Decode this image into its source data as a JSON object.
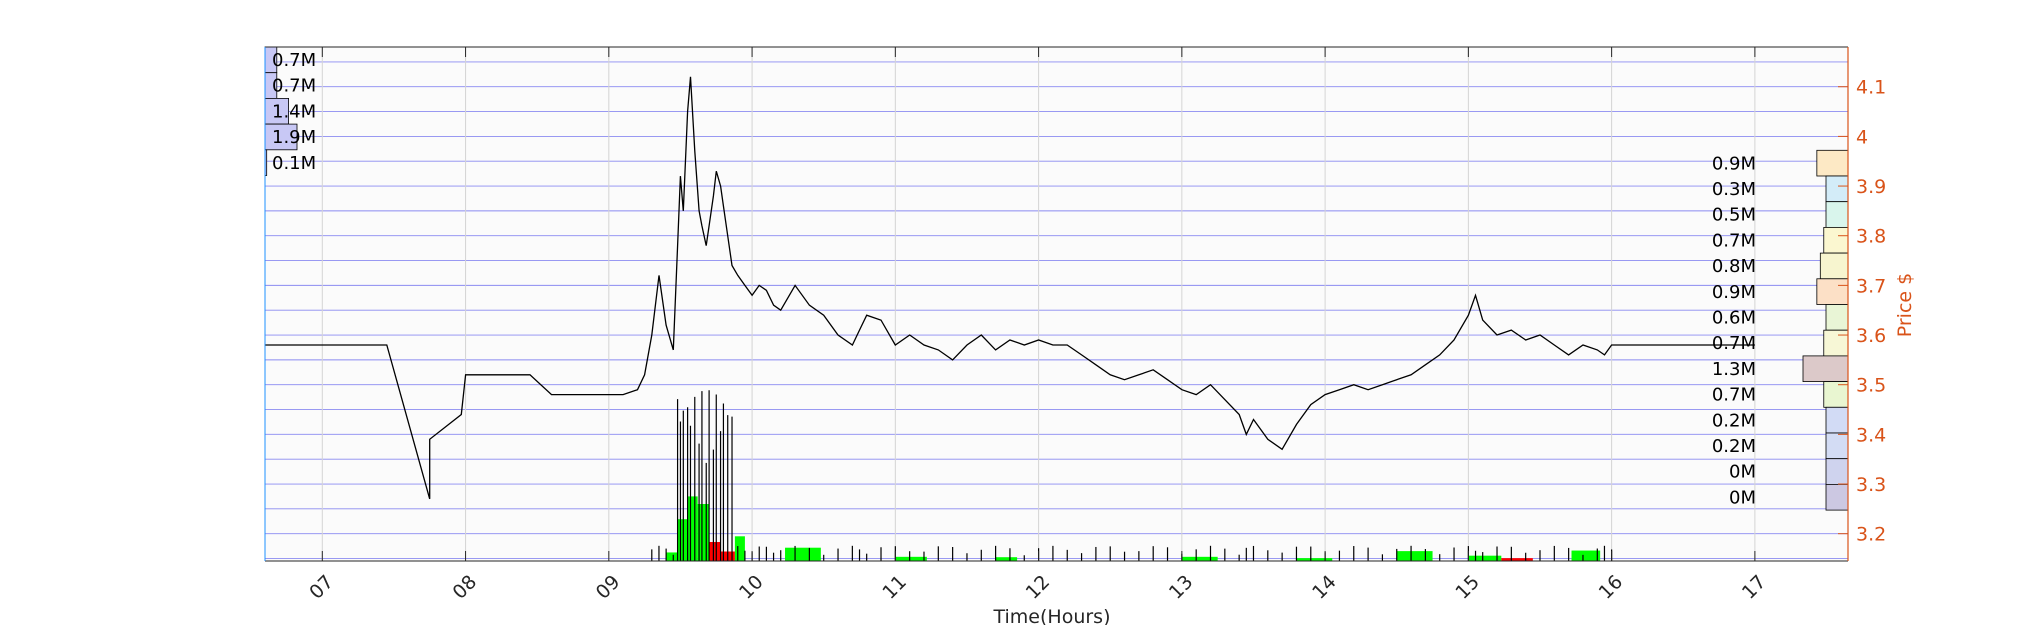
{
  "chart_data": {
    "type": "line",
    "xlabel": "Time(Hours)",
    "ylabel": "Price $",
    "x_ticks": [
      "07",
      "08",
      "09",
      "10",
      "11",
      "12",
      "13",
      "14",
      "15",
      "16",
      "17"
    ],
    "xlim": [
      6.6,
      17.65
    ],
    "y_ticks": [
      3.2,
      3.3,
      3.4,
      3.5,
      3.6,
      3.7,
      3.8,
      3.9,
      4,
      4.1
    ],
    "ylim": [
      3.145,
      4.18
    ],
    "grid": true,
    "price_series": {
      "name": "",
      "x": [
        6.6,
        7.45,
        7.75,
        7.75,
        7.97,
        8.0,
        8.45,
        8.6,
        8.95,
        9.1,
        9.2,
        9.25,
        9.3,
        9.35,
        9.4,
        9.45,
        9.48,
        9.5,
        9.52,
        9.55,
        9.57,
        9.6,
        9.63,
        9.65,
        9.68,
        9.7,
        9.73,
        9.75,
        9.78,
        9.8,
        9.83,
        9.86,
        9.9,
        9.95,
        10.0,
        10.05,
        10.1,
        10.15,
        10.2,
        10.3,
        10.4,
        10.5,
        10.6,
        10.7,
        10.75,
        10.8,
        10.9,
        11.0,
        11.1,
        11.2,
        11.3,
        11.4,
        11.5,
        11.6,
        11.7,
        11.8,
        11.9,
        12.0,
        12.1,
        12.2,
        12.3,
        12.4,
        12.5,
        12.6,
        12.7,
        12.8,
        12.9,
        13.0,
        13.1,
        13.2,
        13.3,
        13.4,
        13.45,
        13.5,
        13.6,
        13.7,
        13.8,
        13.9,
        14.0,
        14.1,
        14.2,
        14.3,
        14.4,
        14.5,
        14.6,
        14.7,
        14.8,
        14.9,
        15.0,
        15.05,
        15.1,
        15.2,
        15.3,
        15.4,
        15.5,
        15.6,
        15.7,
        15.8,
        15.9,
        15.95,
        16.0,
        16.5,
        17.0
      ],
      "y": [
        3.58,
        3.58,
        3.27,
        3.39,
        3.44,
        3.52,
        3.52,
        3.48,
        3.48,
        3.48,
        3.49,
        3.52,
        3.6,
        3.72,
        3.62,
        3.57,
        3.78,
        3.92,
        3.85,
        4.05,
        4.12,
        3.97,
        3.85,
        3.82,
        3.78,
        3.82,
        3.88,
        3.93,
        3.9,
        3.86,
        3.8,
        3.74,
        3.72,
        3.7,
        3.68,
        3.7,
        3.69,
        3.66,
        3.65,
        3.7,
        3.66,
        3.64,
        3.6,
        3.58,
        3.61,
        3.64,
        3.63,
        3.58,
        3.6,
        3.58,
        3.57,
        3.55,
        3.58,
        3.6,
        3.57,
        3.59,
        3.58,
        3.59,
        3.58,
        3.58,
        3.56,
        3.54,
        3.52,
        3.51,
        3.52,
        3.53,
        3.51,
        3.49,
        3.48,
        3.5,
        3.47,
        3.44,
        3.4,
        3.43,
        3.39,
        3.37,
        3.42,
        3.46,
        3.48,
        3.49,
        3.5,
        3.49,
        3.5,
        3.51,
        3.52,
        3.54,
        3.56,
        3.59,
        3.64,
        3.68,
        3.63,
        3.6,
        3.61,
        3.59,
        3.6,
        3.58,
        3.56,
        3.58,
        3.57,
        3.56,
        3.58,
        3.58,
        3.58
      ]
    },
    "volume_bars": {
      "name": "",
      "ylim": [
        0,
        1
      ],
      "bars": [
        {
          "x0": 9.4,
          "x1": 9.48,
          "v": 0.045,
          "color": "#00ff00"
        },
        {
          "x0": 9.48,
          "x1": 9.55,
          "v": 0.22,
          "color": "#00ff00"
        },
        {
          "x0": 9.55,
          "x1": 9.62,
          "v": 0.34,
          "color": "#00ff00"
        },
        {
          "x0": 9.62,
          "x1": 9.7,
          "v": 0.3,
          "color": "#00ff00"
        },
        {
          "x0": 9.7,
          "x1": 9.78,
          "v": 0.1,
          "color": "#ff0000"
        },
        {
          "x0": 9.78,
          "x1": 9.88,
          "v": 0.05,
          "color": "#ff0000"
        },
        {
          "x0": 9.88,
          "x1": 9.95,
          "v": 0.13,
          "color": "#00ff00"
        },
        {
          "x0": 10.23,
          "x1": 10.48,
          "v": 0.07,
          "color": "#00ff00"
        },
        {
          "x0": 11.0,
          "x1": 11.22,
          "v": 0.022,
          "color": "#00ff00"
        },
        {
          "x0": 11.7,
          "x1": 11.85,
          "v": 0.02,
          "color": "#00ff00"
        },
        {
          "x0": 13.0,
          "x1": 13.25,
          "v": 0.022,
          "color": "#00ff00"
        },
        {
          "x0": 13.8,
          "x1": 14.05,
          "v": 0.015,
          "color": "#00ff00"
        },
        {
          "x0": 14.5,
          "x1": 14.75,
          "v": 0.052,
          "color": "#00ff00"
        },
        {
          "x0": 15.0,
          "x1": 15.23,
          "v": 0.028,
          "color": "#00ff00"
        },
        {
          "x0": 15.23,
          "x1": 15.45,
          "v": 0.015,
          "color": "#ff0000"
        },
        {
          "x0": 15.72,
          "x1": 15.92,
          "v": 0.055,
          "color": "#00ff00"
        }
      ]
    },
    "left_profile": {
      "labels": [
        "0.7M",
        "0.7M",
        "1.4M",
        "1.9M",
        "0.1M"
      ],
      "values": [
        0.7,
        0.7,
        1.4,
        1.9,
        0.1
      ],
      "color": "#c8c8f5"
    },
    "right_profile": {
      "labels": [
        "0.9M",
        "0.3M",
        "0.5M",
        "0.7M",
        "0.8M",
        "0.9M",
        "0.6M",
        "0.7M",
        "1.3M",
        "0.7M",
        "0.2M",
        "0.2M",
        "0M",
        "0M"
      ],
      "values": [
        0.9,
        0.3,
        0.5,
        0.7,
        0.8,
        0.9,
        0.6,
        0.7,
        1.3,
        0.7,
        0.2,
        0.2,
        0.0,
        0.0
      ],
      "colors": [
        "#fde9c5",
        "#d3ecf8",
        "#d9f5ec",
        "#fbf7d0",
        "#f7f5cf",
        "#fce0c6",
        "#e9f5d6",
        "#f7f7d6",
        "#dcc9c9",
        "#e9f6d1",
        "#d2dbf5",
        "#d3dcf4",
        "#cfd3ee",
        "#ccc8e2"
      ]
    },
    "colors": {
      "axis_right": "#d95319",
      "grid_h": "#7777ee",
      "profile_edge": "#000000",
      "price_line": "#000000"
    }
  }
}
